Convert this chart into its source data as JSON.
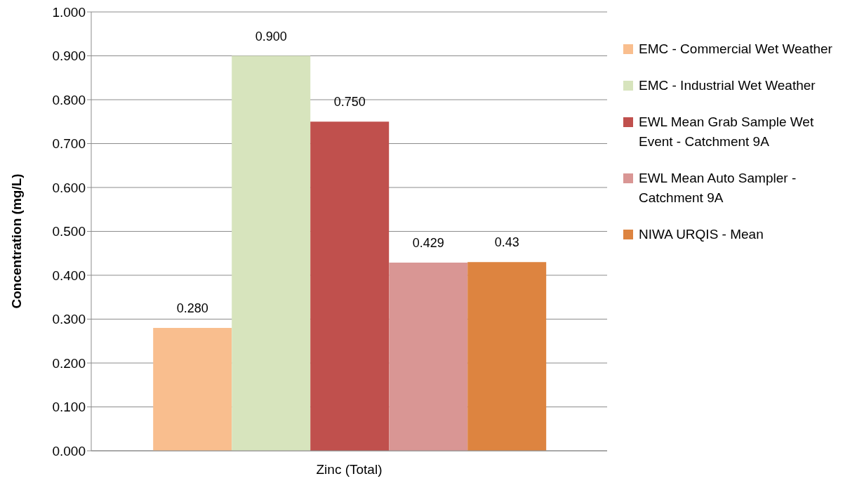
{
  "chart_data": {
    "type": "bar",
    "ylabel": "Concentration (mg/L)",
    "categories": [
      "Zinc (Total)"
    ],
    "series": [
      {
        "name": "EMC - Commercial Wet Weather",
        "color": "#f9be8e",
        "values": [
          0.28
        ],
        "value_labels": [
          "0.280"
        ]
      },
      {
        "name": "EMC - Industrial Wet Weather",
        "color": "#d7e4bd",
        "values": [
          0.9
        ],
        "value_labels": [
          "0.900"
        ]
      },
      {
        "name": "EWL Mean Grab Sample Wet Event - Catchment 9A",
        "color": "#c0504d",
        "values": [
          0.75
        ],
        "value_labels": [
          "0.750"
        ]
      },
      {
        "name": "EWL Mean Auto Sampler - Catchment 9A",
        "color": "#d99694",
        "values": [
          0.429
        ],
        "value_labels": [
          "0.429"
        ]
      },
      {
        "name": "NIWA URQIS - Mean",
        "color": "#dd8440",
        "values": [
          0.43
        ],
        "value_labels": [
          "0.43"
        ]
      }
    ],
    "ylim": [
      0,
      1
    ],
    "yticks": [
      {
        "value": 0,
        "label": "0.000"
      },
      {
        "value": 0.1,
        "label": "0.100"
      },
      {
        "value": 0.2,
        "label": "0.200"
      },
      {
        "value": 0.3,
        "label": "0.300"
      },
      {
        "value": 0.4,
        "label": "0.400"
      },
      {
        "value": 0.5,
        "label": "0.500"
      },
      {
        "value": 0.6,
        "label": "0.600"
      },
      {
        "value": 0.7,
        "label": "0.700"
      },
      {
        "value": 0.8,
        "label": "0.800"
      },
      {
        "value": 0.9,
        "label": "0.900"
      },
      {
        "value": 1,
        "label": "1.000"
      }
    ],
    "grid": "y",
    "legend": "right"
  }
}
